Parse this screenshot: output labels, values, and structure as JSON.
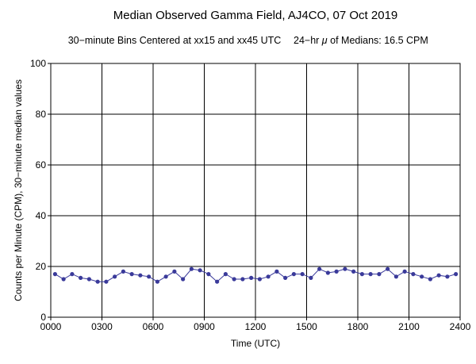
{
  "chart_data": {
    "type": "line",
    "title": "Median Observed Gamma Field, AJ4CO, 07 Oct 2019",
    "subtitle_left": "30−minute Bins Centered at xx15 and xx45 UTC",
    "subtitle_right_prefix": "24−hr ",
    "subtitle_right_mu": "μ",
    "subtitle_right_suffix": " of Medians: 16.5 CPM",
    "xlabel": "Time (UTC)",
    "ylabel": "Counts per Minute (CPM), 30−minute median values",
    "xlim": [
      0,
      24
    ],
    "ylim": [
      0,
      100
    ],
    "x_ticks": [
      0,
      3,
      6,
      9,
      12,
      15,
      18,
      21,
      24
    ],
    "x_tick_labels": [
      "0000",
      "0300",
      "0600",
      "0900",
      "1200",
      "1500",
      "1800",
      "2100",
      "2400"
    ],
    "y_ticks": [
      0,
      20,
      40,
      60,
      80,
      100
    ],
    "y_tick_labels": [
      "0",
      "20",
      "40",
      "60",
      "80",
      "100"
    ],
    "grid": true,
    "series_color": "#3a3a9a",
    "x": [
      0.25,
      0.75,
      1.25,
      1.75,
      2.25,
      2.75,
      3.25,
      3.75,
      4.25,
      4.75,
      5.25,
      5.75,
      6.25,
      6.75,
      7.25,
      7.75,
      8.25,
      8.75,
      9.25,
      9.75,
      10.25,
      10.75,
      11.25,
      11.75,
      12.25,
      12.75,
      13.25,
      13.75,
      14.25,
      14.75,
      15.25,
      15.75,
      16.25,
      16.75,
      17.25,
      17.75,
      18.25,
      18.75,
      19.25,
      19.75,
      20.25,
      20.75,
      21.25,
      21.75,
      22.25,
      22.75,
      23.25,
      23.75
    ],
    "values": [
      17,
      15,
      17,
      15.5,
      15,
      14,
      14,
      16,
      18,
      17,
      16.5,
      16,
      14,
      16,
      18,
      15,
      19,
      18.5,
      17,
      14,
      17,
      15,
      15,
      15.5,
      15,
      16,
      18,
      15.5,
      17,
      17,
      15.5,
      19,
      17.5,
      18,
      19,
      18,
      17,
      17,
      17,
      19,
      16,
      18,
      17,
      16,
      15,
      16.5,
      16,
      17
    ]
  }
}
